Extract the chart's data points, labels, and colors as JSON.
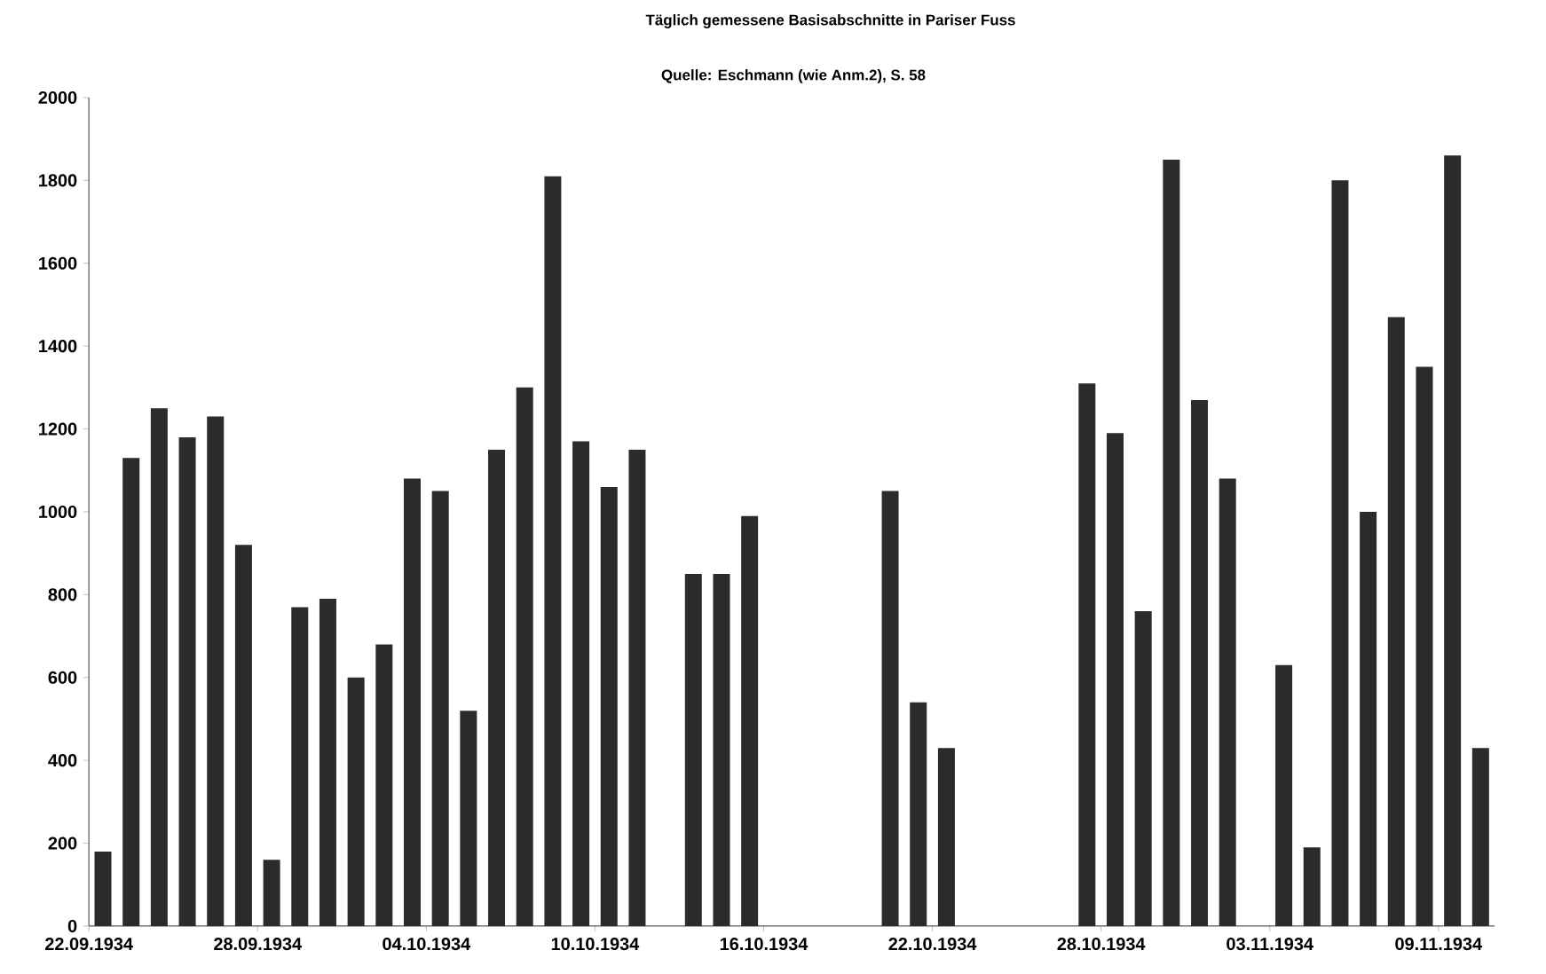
{
  "chart_data": {
    "type": "bar",
    "title": "Täglich gemessene Basisabschnitte in Pariser Fuss",
    "subtitle": "Quelle: Eschmann (wie Anm.2), S. 58",
    "categories": [
      "22.09.1934",
      null,
      null,
      null,
      null,
      null,
      "28.09.1934",
      null,
      null,
      null,
      null,
      null,
      "04.10.1934",
      null,
      null,
      null,
      null,
      null,
      "10.10.1934",
      null,
      null,
      null,
      null,
      null,
      "16.10.1934",
      null,
      null,
      null,
      null,
      null,
      "22.10.1934",
      null,
      null,
      null,
      null,
      null,
      "28.10.1934",
      null,
      null,
      null,
      null,
      null,
      "03.11.1934",
      null,
      null,
      null,
      null,
      null,
      "09.11.1934",
      null
    ],
    "values": [
      180,
      1130,
      1250,
      1180,
      1230,
      920,
      160,
      770,
      790,
      600,
      680,
      1080,
      1050,
      520,
      1150,
      1300,
      1810,
      1170,
      1060,
      1150,
      null,
      850,
      850,
      990,
      null,
      null,
      null,
      null,
      1050,
      540,
      430,
      null,
      null,
      null,
      null,
      1310,
      1190,
      760,
      1850,
      1270,
      1080,
      null,
      630,
      190,
      1800,
      1000,
      1470,
      1350,
      1860,
      430
    ],
    "color": "#2b2b2b",
    "ylim": [
      0,
      2000
    ],
    "yticks": [
      0,
      200,
      400,
      600,
      800,
      1000,
      1200,
      1400,
      1600,
      1800,
      2000
    ]
  }
}
